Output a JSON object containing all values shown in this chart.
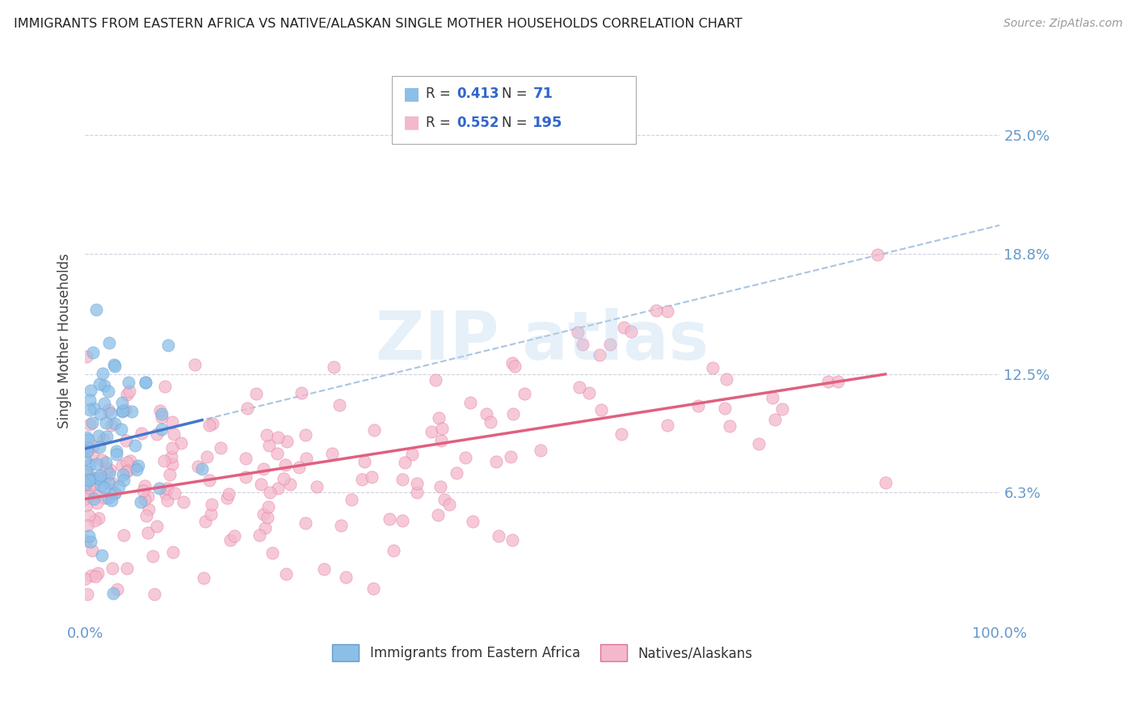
{
  "title": "IMMIGRANTS FROM EASTERN AFRICA VS NATIVE/ALASKAN SINGLE MOTHER HOUSEHOLDS CORRELATION CHART",
  "source": "Source: ZipAtlas.com",
  "ylabel": "Single Mother Households",
  "x_tick_labels": [
    "0.0%",
    "100.0%"
  ],
  "y_tick_labels": [
    "6.3%",
    "12.5%",
    "18.8%",
    "25.0%"
  ],
  "y_tick_values": [
    0.063,
    0.125,
    0.188,
    0.25
  ],
  "x_range": [
    0.0,
    1.0
  ],
  "y_range": [
    -0.005,
    0.29
  ],
  "series1": {
    "label": "Immigrants from Eastern Africa",
    "color": "#8bbfe8",
    "edge_color": "#6699cc",
    "R": 0.413,
    "N": 71
  },
  "series2": {
    "label": "Natives/Alaskans",
    "color": "#f4b8cc",
    "edge_color": "#e07090",
    "R": 0.552,
    "N": 195
  },
  "blue_line_color": "#4477cc",
  "pink_line_color": "#e06080",
  "dashed_line_color": "#99bbdd",
  "background_color": "#ffffff",
  "grid_color": "#ccccdd",
  "title_color": "#222222",
  "axis_label_color": "#6699cc",
  "legend_R_color": "#3366cc",
  "watermark_color": "#b8d4ee",
  "legend_border_color": "#aaaaaa"
}
